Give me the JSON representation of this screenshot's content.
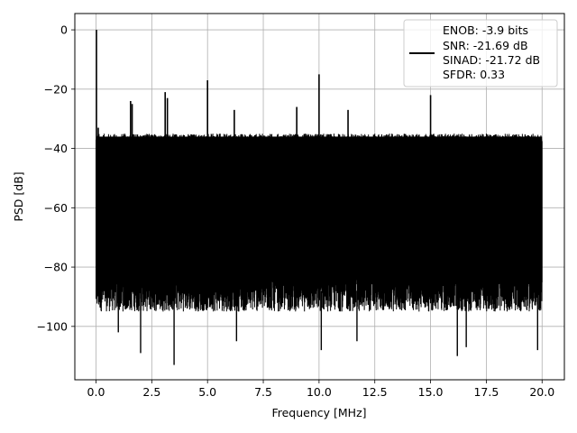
{
  "chart_data": {
    "type": "line",
    "title": "",
    "xlabel": "Frequency [MHz]",
    "ylabel": "PSD [dB]",
    "xlim": [
      -0.95,
      21.0
    ],
    "ylim": [
      -118,
      5.5
    ],
    "xticks": [
      0.0,
      2.5,
      5.0,
      7.5,
      10.0,
      12.5,
      15.0,
      17.5,
      20.0
    ],
    "xtick_labels": [
      "0.0",
      "2.5",
      "5.0",
      "7.5",
      "10.0",
      "12.5",
      "15.0",
      "17.5",
      "20.0"
    ],
    "yticks": [
      0,
      -20,
      -40,
      -60,
      -80,
      -100
    ],
    "ytick_labels": [
      "0",
      "−20",
      "−40",
      "−60",
      "−80",
      "−100"
    ],
    "grid": true,
    "legend_placement": "top-right",
    "legend": [
      "ENOB: -3.9 bits",
      "SNR: -21.69 dB",
      "SINAD: -21.72 dB",
      "SFDR: 0.33"
    ],
    "series": [
      {
        "color": "#000000",
        "x_range": [
          0.0,
          20.0
        ],
        "noise_band": {
          "upper": -38,
          "lower": -88
        },
        "spikes": [
          {
            "x": 0.02,
            "y": 0
          },
          {
            "x": 0.1,
            "y": -33
          },
          {
            "x": 1.55,
            "y": -24
          },
          {
            "x": 1.62,
            "y": -25
          },
          {
            "x": 3.1,
            "y": -21
          },
          {
            "x": 3.2,
            "y": -23
          },
          {
            "x": 5.0,
            "y": -17
          },
          {
            "x": 6.2,
            "y": -27
          },
          {
            "x": 9.0,
            "y": -26
          },
          {
            "x": 10.0,
            "y": -15
          },
          {
            "x": 11.3,
            "y": -27
          },
          {
            "x": 15.0,
            "y": -22
          }
        ],
        "dips": [
          {
            "x": 1.0,
            "y": -102
          },
          {
            "x": 2.0,
            "y": -109
          },
          {
            "x": 3.5,
            "y": -113
          },
          {
            "x": 6.3,
            "y": -105
          },
          {
            "x": 10.1,
            "y": -108
          },
          {
            "x": 11.7,
            "y": -105
          },
          {
            "x": 16.2,
            "y": -110
          },
          {
            "x": 16.6,
            "y": -107
          },
          {
            "x": 19.8,
            "y": -108
          }
        ]
      }
    ]
  }
}
